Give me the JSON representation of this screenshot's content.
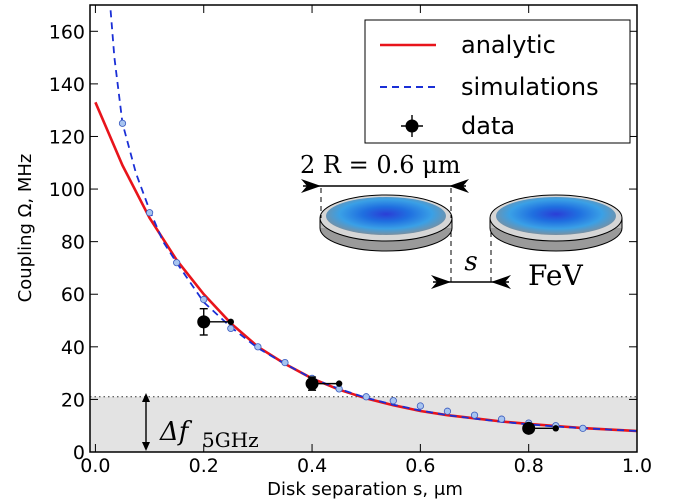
{
  "chart_data": {
    "type": "line",
    "xlabel": "Disk separation s, μm",
    "ylabel": "Coupling Ω, MHz",
    "xlim": [
      -0.01,
      1.0
    ],
    "ylim": [
      0,
      170
    ],
    "xticks": [
      0.0,
      0.2,
      0.4,
      0.6,
      0.8,
      1.0
    ],
    "xtick_labels": [
      "0.0",
      "0.2",
      "0.4",
      "0.6",
      "0.8",
      "1.0"
    ],
    "yticks": [
      0,
      20,
      40,
      60,
      80,
      100,
      120,
      140,
      160
    ],
    "ytick_labels": [
      "0",
      "20",
      "40",
      "60",
      "80",
      "100",
      "120",
      "140",
      "160"
    ],
    "grid": false,
    "legend_position": "top-right",
    "series": [
      {
        "name": "analytic",
        "kind": "line",
        "color": "#e8141b",
        "style": "solid",
        "x": [
          0.0,
          0.05,
          0.1,
          0.15,
          0.2,
          0.25,
          0.3,
          0.35,
          0.4,
          0.45,
          0.5,
          0.55,
          0.6,
          0.65,
          0.7,
          0.75,
          0.8,
          0.85,
          0.9,
          0.95,
          1.0
        ],
        "y": [
          133,
          109,
          89,
          73,
          60,
          49,
          40,
          33.5,
          28,
          23.7,
          20.4,
          17.8,
          15.6,
          14,
          12.8,
          11.6,
          10.7,
          9.9,
          9.1,
          8.5,
          8
        ]
      },
      {
        "name": "simulations",
        "kind": "line",
        "color": "#1a2fd6",
        "style": "dashed",
        "x": [
          0.028,
          0.035,
          0.05,
          0.075,
          0.1,
          0.125,
          0.15,
          0.2,
          0.25,
          0.3,
          0.35,
          0.4,
          0.45,
          0.5,
          0.55,
          0.6,
          0.65,
          0.7,
          0.75,
          0.8,
          0.85,
          0.9,
          0.95,
          1.0
        ],
        "y": [
          168,
          150,
          125,
          106,
          92,
          80,
          72,
          57,
          47.5,
          39.5,
          33.5,
          28,
          24,
          20.6,
          18,
          15.8,
          14,
          12.7,
          11.5,
          10.5,
          9.7,
          9.1,
          8.5,
          8
        ]
      },
      {
        "name": "simulation points",
        "kind": "points",
        "color": "#a7c4f0",
        "x": [
          0.05,
          0.1,
          0.15,
          0.2,
          0.25,
          0.3,
          0.35,
          0.4,
          0.45,
          0.5,
          0.55,
          0.6,
          0.65,
          0.7,
          0.75,
          0.8,
          0.85,
          0.9
        ],
        "y": [
          125,
          91,
          72,
          58,
          47,
          40,
          34,
          28,
          24,
          21,
          19.5,
          17.5,
          15.5,
          14,
          12.5,
          11,
          10,
          9
        ]
      },
      {
        "name": "data",
        "kind": "errorbar",
        "color": "#000000",
        "x": [
          0.2,
          0.4,
          0.8
        ],
        "y": [
          49.5,
          26,
          9
        ],
        "xerr_right": [
          0.05,
          0.05,
          0.05
        ],
        "yerr": [
          5,
          2.5,
          1.5
        ]
      }
    ],
    "band": {
      "y": [
        0,
        21
      ],
      "color": "#e3e3e3",
      "label": "Δf_{5GHz}"
    },
    "annotations": {
      "diameter": "2 R = 0.6 μm",
      "separation": "s",
      "material": "FeV",
      "band_label": "Δf",
      "band_subscript": "5GHz"
    }
  }
}
